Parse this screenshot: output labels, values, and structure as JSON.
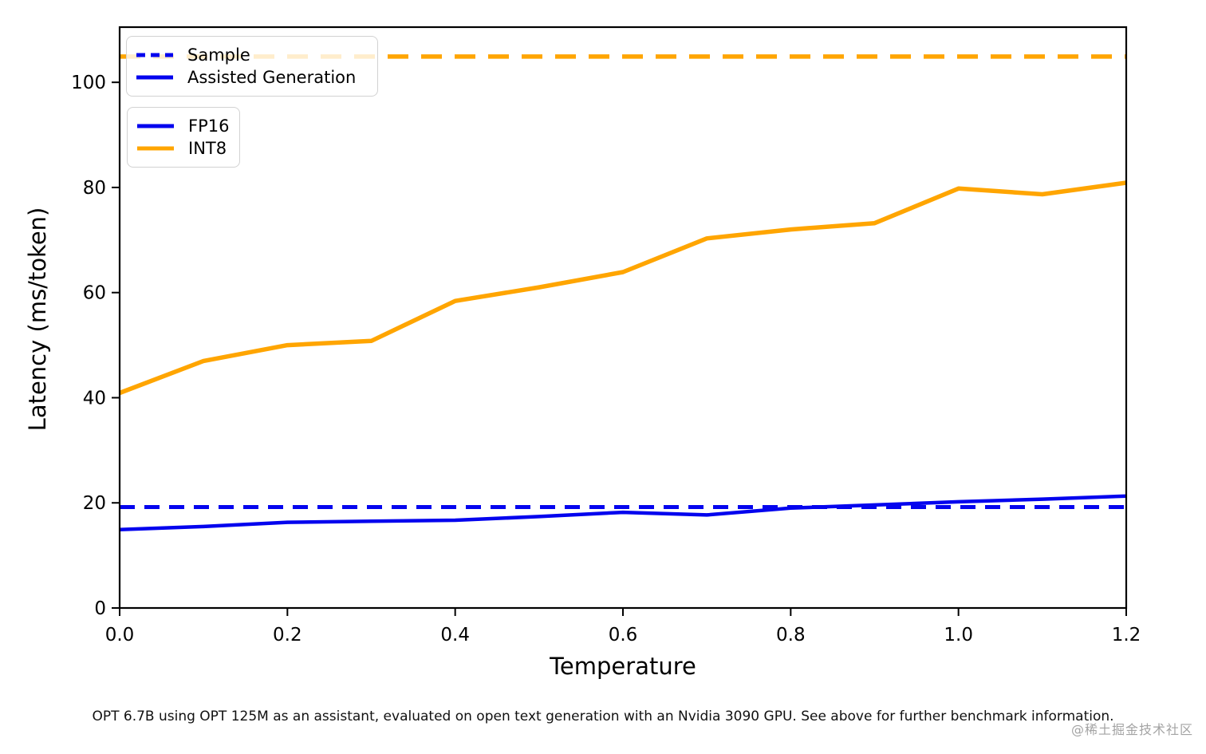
{
  "colors": {
    "blue": "#0404ee",
    "orange": "#ffa500",
    "axis": "#000000",
    "legend_border": "#d2d2d2",
    "watermark": "#8c8c8c"
  },
  "chart_data": {
    "type": "line",
    "title": "",
    "xlabel": "Temperature",
    "ylabel": "Latency (ms/token)",
    "xlim": [
      0,
      1.2
    ],
    "ylim": [
      0,
      110.5
    ],
    "grid": false,
    "x_ticks": [
      {
        "v": 0.0,
        "label": "0.0"
      },
      {
        "v": 0.2,
        "label": "0.2"
      },
      {
        "v": 0.4,
        "label": "0.4"
      },
      {
        "v": 0.6,
        "label": "0.6"
      },
      {
        "v": 0.8,
        "label": "0.8"
      },
      {
        "v": 1.0,
        "label": "1.0"
      },
      {
        "v": 1.2,
        "label": "1.2"
      }
    ],
    "y_ticks": [
      {
        "v": 0,
        "label": "0"
      },
      {
        "v": 20,
        "label": "20"
      },
      {
        "v": 40,
        "label": "40"
      },
      {
        "v": 60,
        "label": "60"
      },
      {
        "v": 80,
        "label": "80"
      },
      {
        "v": 100,
        "label": "100"
      }
    ],
    "x": [
      0.0,
      0.1,
      0.2,
      0.3,
      0.4,
      0.5,
      0.6,
      0.7,
      0.8,
      0.9,
      1.0,
      1.1,
      1.2
    ],
    "series": [
      {
        "id": "sample-int8",
        "name": "Sample INT8",
        "type": "hline",
        "value": 104.9,
        "color": "#ffa500",
        "width": 5.5,
        "dash": [
          26,
          16
        ]
      },
      {
        "id": "sample-fp16",
        "name": "Sample FP16",
        "type": "hline",
        "value": 19.2,
        "color": "#0404ee",
        "width": 5,
        "dash": [
          19,
          12
        ]
      },
      {
        "id": "assisted-int8",
        "name": "Assisted Generation INT8",
        "type": "line",
        "values": [
          40.9,
          47.0,
          50.0,
          50.8,
          58.4,
          61.0,
          63.9,
          70.3,
          72.0,
          73.2,
          79.8,
          78.7,
          80.9
        ],
        "color": "#ffa500",
        "width": 5.5,
        "dash": null
      },
      {
        "id": "assisted-fp16",
        "name": "Assisted Generation FP16",
        "type": "line",
        "values": [
          14.9,
          15.5,
          16.3,
          16.5,
          16.7,
          17.4,
          18.2,
          17.7,
          19.0,
          19.6,
          20.2,
          20.7,
          21.3
        ],
        "color": "#0404ee",
        "width": 4.5,
        "dash": null
      }
    ],
    "legends": [
      {
        "position": "upper-left",
        "entries": [
          {
            "label": "Sample",
            "color": "#0404ee",
            "dash": true
          },
          {
            "label": "Assisted Generation",
            "color": "#0404ee",
            "dash": false
          }
        ]
      },
      {
        "position": "upper-left-below",
        "entries": [
          {
            "label": "FP16",
            "color": "#0404ee",
            "dash": false
          },
          {
            "label": "INT8",
            "color": "#ffa500",
            "dash": false
          }
        ]
      }
    ]
  },
  "caption": "OPT 6.7B using OPT 125M as an assistant, evaluated on open text generation with an Nvidia 3090 GPU. See above for further benchmark information.",
  "watermark": "@稀土掘金技术社区"
}
